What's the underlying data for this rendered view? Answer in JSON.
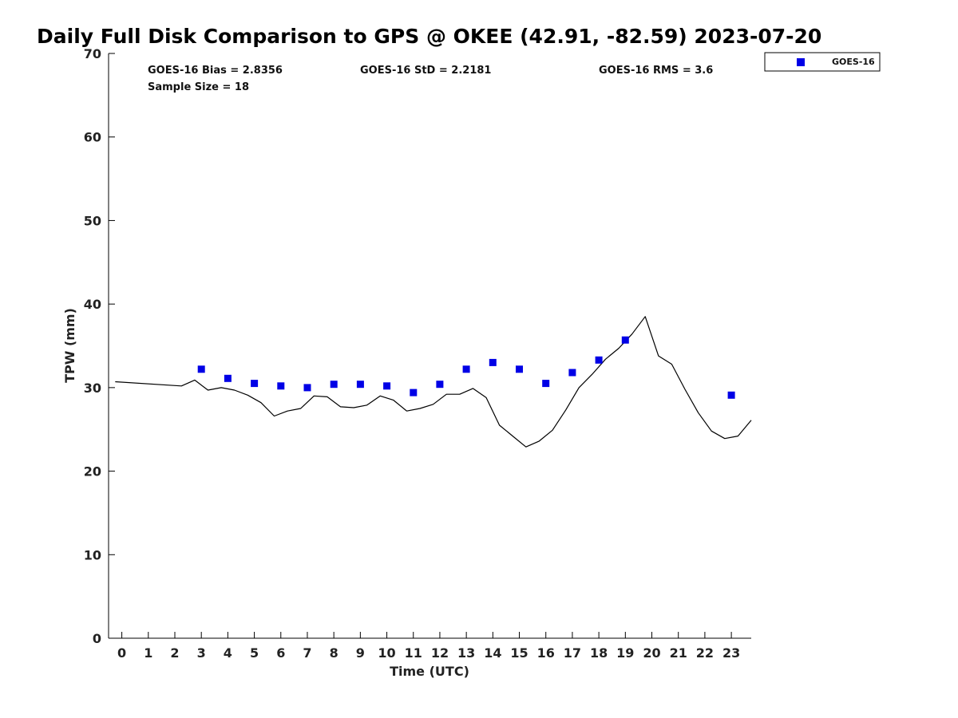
{
  "chart_data": {
    "type": "line",
    "title": "Daily Full Disk Comparison to GPS @ OKEE (42.91, -82.59) 2023-07-20",
    "xlabel": "Time (UTC)",
    "ylabel": "TPW (mm)",
    "xlim": [
      -0.5,
      23.75
    ],
    "ylim": [
      0,
      70
    ],
    "xticks": [
      0,
      1,
      2,
      3,
      4,
      5,
      6,
      7,
      8,
      9,
      10,
      11,
      12,
      13,
      14,
      15,
      16,
      17,
      18,
      19,
      20,
      21,
      22,
      23
    ],
    "yticks": [
      0,
      10,
      20,
      30,
      40,
      50,
      60,
      70
    ],
    "grid": false,
    "legend_position": "top-right",
    "stats": {
      "bias": "GOES-16 Bias = 2.8356",
      "std": "GOES-16 StD = 2.2181",
      "rms": "GOES-16 RMS = 3.6",
      "sample_size": "Sample Size = 18"
    },
    "series": [
      {
        "name": "",
        "kind": "line",
        "color": "#000000",
        "x": [
          -0.25,
          2.25,
          2.75,
          3.25,
          3.75,
          4.25,
          4.75,
          5.25,
          5.75,
          6.25,
          6.75,
          7.25,
          7.75,
          8.25,
          8.75,
          9.25,
          9.75,
          10.25,
          10.75,
          11.25,
          11.75,
          12.25,
          12.75,
          13.25,
          13.75,
          14.25,
          14.75,
          15.25,
          15.75,
          16.25,
          16.75,
          17.25,
          17.75,
          18.25,
          18.75,
          19.25,
          19.75,
          20.25,
          20.75,
          21.25,
          21.75,
          22.25,
          22.75,
          23.25,
          23.75
        ],
        "y": [
          30.7,
          30.2,
          30.9,
          29.7,
          30.0,
          29.7,
          29.1,
          28.2,
          26.6,
          27.2,
          27.5,
          29.0,
          28.9,
          27.7,
          27.6,
          27.9,
          29.0,
          28.5,
          27.2,
          27.5,
          28.0,
          29.2,
          29.2,
          29.9,
          28.8,
          25.5,
          24.2,
          22.9,
          23.6,
          24.9,
          27.3,
          30.0,
          31.6,
          33.4,
          34.7,
          36.4,
          38.5,
          33.8,
          32.8,
          29.8,
          27.0,
          24.8,
          23.9,
          24.2,
          26.1
        ]
      },
      {
        "name": "GOES-16",
        "kind": "scatter",
        "color": "#0000e6",
        "x": [
          3,
          4,
          5,
          6,
          7,
          8,
          9,
          10,
          11,
          12,
          13,
          14,
          15,
          16,
          17,
          18,
          19,
          23
        ],
        "y": [
          32.2,
          31.1,
          30.5,
          30.2,
          30.0,
          30.4,
          30.4,
          30.2,
          29.4,
          30.4,
          32.2,
          33.0,
          32.2,
          30.5,
          31.8,
          33.3,
          35.7,
          29.1
        ]
      }
    ]
  }
}
